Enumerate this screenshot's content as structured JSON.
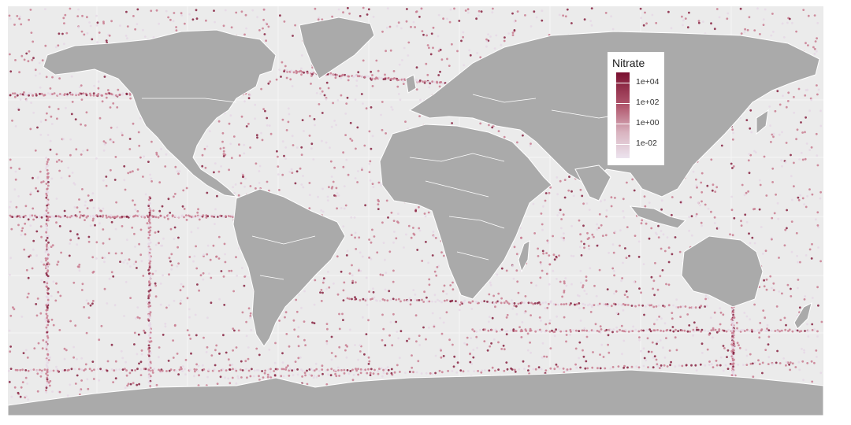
{
  "colors": {
    "ocean": "#ebebeb",
    "land": "#aaaaaa",
    "border": "#ffffff",
    "grid": "#f7f7f7",
    "point_low": "#e6d8e6",
    "point_mid": "#c97d90",
    "point_high": "#86213f"
  },
  "legend": {
    "title": "Nitrate",
    "ticks": [
      "1e+04",
      "1e+02",
      "1e+00",
      "1e-02"
    ]
  }
}
